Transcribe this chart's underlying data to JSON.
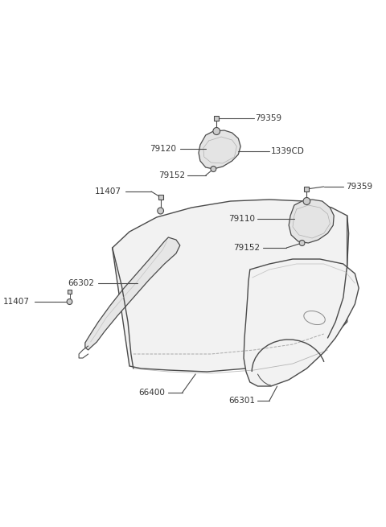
{
  "bg_color": "#ffffff",
  "line_color": "#4a4a4a",
  "text_color": "#333333",
  "fig_width": 4.8,
  "fig_height": 6.55,
  "dpi": 100,
  "fill_light": "#f0f0f0",
  "fill_mid": "#e4e4e4",
  "fill_dark": "#d8d8d8",
  "xlim": [
    0,
    480
  ],
  "ylim": [
    0,
    655
  ]
}
